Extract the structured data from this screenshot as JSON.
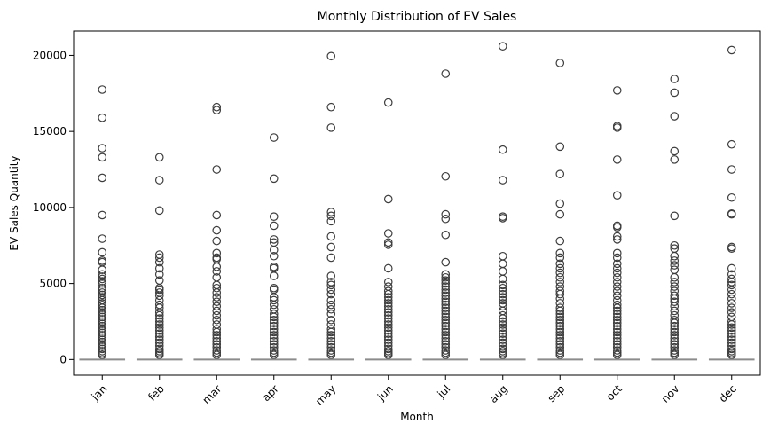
{
  "chart_data": {
    "type": "box",
    "title": "Monthly Distribution of EV Sales",
    "xlabel": "Month",
    "ylabel": "EV Sales Quantity",
    "categories": [
      "jan",
      "feb",
      "mar",
      "apr",
      "may",
      "jun",
      "jul",
      "aug",
      "sep",
      "oct",
      "nov",
      "dec"
    ],
    "yticks": [
      0,
      5000,
      10000,
      15000,
      20000
    ],
    "ylim": [
      -1030,
      21600
    ],
    "grid": false,
    "legend": "none",
    "box_color": "#8c8c8c",
    "outlier_color": "#3d3d3d",
    "series": [
      {
        "category": "jan",
        "outliers": [
          17750,
          15900,
          13900,
          13300,
          11950,
          9500,
          7950,
          7050,
          6500,
          6400,
          5900,
          5600,
          5450,
          5300,
          5150,
          5000,
          4700,
          4550,
          4400,
          4250,
          4100,
          3900,
          3700,
          3550,
          3400,
          3250,
          3100,
          2950,
          2800,
          2650,
          2500,
          2350,
          2200,
          2050,
          1900,
          1750,
          1600,
          1450,
          1300,
          1150,
          1000,
          850,
          700,
          550,
          420,
          300
        ]
      },
      {
        "category": "feb",
        "outliers": [
          13300,
          11800,
          9800,
          6900,
          6700,
          6400,
          6000,
          5600,
          5200,
          4700,
          4600,
          4400,
          4200,
          3900,
          3600,
          3400,
          3100,
          2900,
          2700,
          2500,
          2300,
          2100,
          1900,
          1700,
          1500,
          1300,
          1100,
          900,
          700,
          550,
          420,
          300
        ]
      },
      {
        "category": "mar",
        "outliers": [
          16600,
          16400,
          12500,
          9500,
          8500,
          7800,
          7000,
          6700,
          6600,
          6100,
          5800,
          5400,
          4900,
          4700,
          4400,
          4100,
          3800,
          3500,
          3200,
          2900,
          2600,
          2300,
          2000,
          1800,
          1600,
          1400,
          1200,
          1000,
          800,
          600,
          450,
          300
        ]
      },
      {
        "category": "apr",
        "outliers": [
          14600,
          11900,
          9400,
          8800,
          7900,
          7700,
          7200,
          6800,
          6100,
          6000,
          5500,
          4700,
          4600,
          4100,
          3900,
          3600,
          3300,
          3000,
          2800,
          2600,
          2400,
          2200,
          2000,
          1800,
          1600,
          1400,
          1200,
          1000,
          800,
          600,
          450,
          300
        ]
      },
      {
        "category": "may",
        "outliers": [
          19950,
          16600,
          15250,
          9700,
          9450,
          9100,
          8100,
          7400,
          6700,
          5500,
          5100,
          4900,
          4600,
          4300,
          3900,
          3600,
          3300,
          3000,
          2600,
          2300,
          2000,
          1800,
          1600,
          1400,
          1200,
          1000,
          800,
          600,
          450,
          300
        ]
      },
      {
        "category": "jun",
        "outliers": [
          16900,
          10550,
          8300,
          7700,
          7550,
          6000,
          5100,
          4800,
          4500,
          4300,
          4100,
          3900,
          3700,
          3500,
          3300,
          3100,
          2900,
          2700,
          2500,
          2300,
          2100,
          1900,
          1700,
          1500,
          1300,
          1100,
          900,
          700,
          550,
          420,
          300
        ]
      },
      {
        "category": "jul",
        "outliers": [
          18800,
          12050,
          9550,
          9250,
          8200,
          6400,
          5600,
          5400,
          5200,
          5000,
          4800,
          4600,
          4400,
          4200,
          4000,
          3800,
          3600,
          3400,
          3200,
          3000,
          2800,
          2600,
          2400,
          2200,
          2000,
          1800,
          1600,
          1400,
          1200,
          1000,
          800,
          600,
          450,
          300
        ]
      },
      {
        "category": "aug",
        "outliers": [
          20600,
          13800,
          11800,
          9400,
          9300,
          6800,
          6300,
          5800,
          5300,
          4900,
          4700,
          4500,
          4300,
          4100,
          3900,
          3700,
          3500,
          3200,
          2900,
          2700,
          2500,
          2300,
          2100,
          1900,
          1700,
          1500,
          1300,
          1100,
          900,
          700,
          550,
          420,
          300
        ]
      },
      {
        "category": "sep",
        "outliers": [
          19500,
          14000,
          12200,
          10250,
          9550,
          7800,
          7000,
          6700,
          6300,
          6000,
          5700,
          5400,
          5100,
          4800,
          4500,
          4300,
          4000,
          3700,
          3400,
          3200,
          3000,
          2800,
          2600,
          2400,
          2200,
          2000,
          1800,
          1600,
          1400,
          1200,
          1000,
          800,
          600,
          450,
          300
        ]
      },
      {
        "category": "oct",
        "outliers": [
          17700,
          15350,
          15250,
          13150,
          10800,
          8800,
          8700,
          8100,
          7900,
          7000,
          6700,
          6300,
          6000,
          5700,
          5400,
          5100,
          4800,
          4500,
          4200,
          3900,
          3600,
          3400,
          3200,
          3000,
          2800,
          2600,
          2400,
          2200,
          2000,
          1800,
          1600,
          1400,
          1200,
          1000,
          800,
          600,
          450,
          300
        ]
      },
      {
        "category": "nov",
        "outliers": [
          18450,
          17550,
          16000,
          13700,
          13150,
          9450,
          7500,
          7300,
          6800,
          6500,
          6200,
          5900,
          5400,
          5100,
          4800,
          4500,
          4200,
          4000,
          3800,
          3500,
          3200,
          2900,
          2600,
          2400,
          2200,
          2000,
          1800,
          1600,
          1400,
          1200,
          1000,
          800,
          600,
          450,
          300
        ]
      },
      {
        "category": "dec",
        "outliers": [
          20350,
          14150,
          12500,
          10650,
          9600,
          9550,
          7400,
          7300,
          6000,
          5600,
          5300,
          5100,
          4900,
          4600,
          4300,
          4000,
          3700,
          3400,
          3100,
          2800,
          2500,
          2300,
          2100,
          1900,
          1700,
          1500,
          1300,
          1100,
          900,
          700,
          550,
          420,
          300
        ]
      }
    ]
  }
}
